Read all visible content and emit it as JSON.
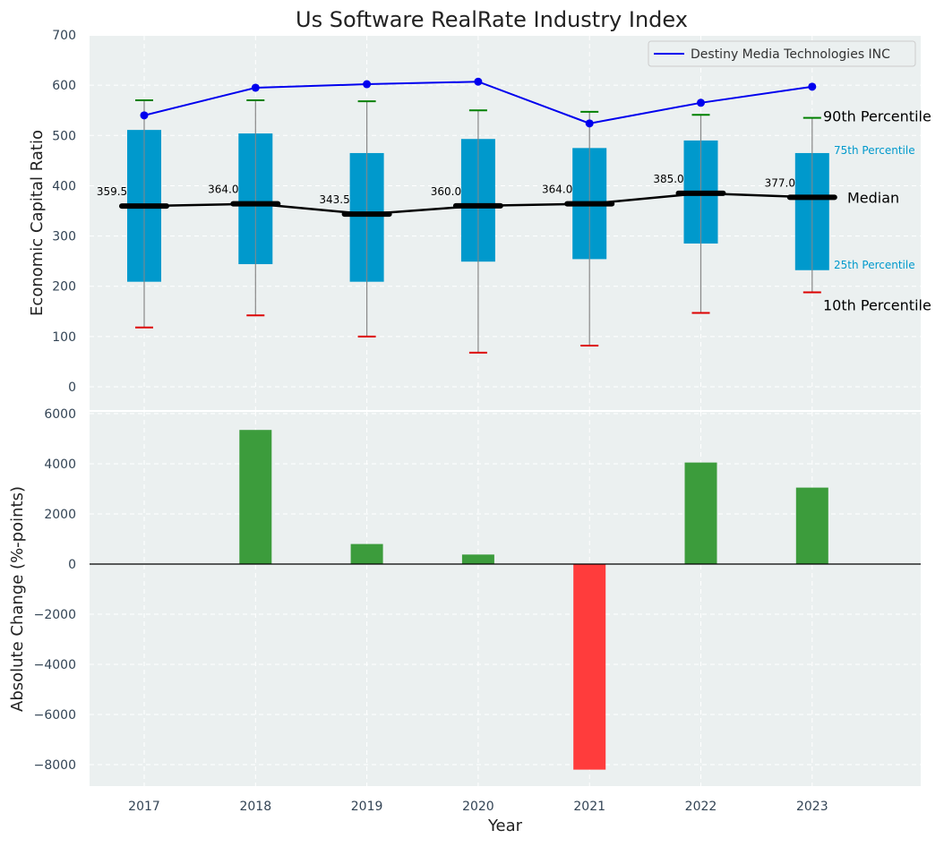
{
  "chart_data": [
    {
      "type": "box",
      "title": "Us Software RealRate Industry Index",
      "ylabel": "Economic Capital Ratio",
      "xlabel": "",
      "ylim": [
        0,
        700
      ],
      "yticks": [
        0,
        100,
        200,
        300,
        400,
        500,
        600,
        700
      ],
      "grid": true,
      "legend_position": "top-right",
      "categories": [
        "2017",
        "2018",
        "2019",
        "2020",
        "2021",
        "2022",
        "2023"
      ],
      "p10": [
        118,
        142,
        100,
        68,
        82,
        147,
        188
      ],
      "p25": [
        209,
        244,
        209,
        249,
        254,
        285,
        232
      ],
      "median": [
        359.5,
        364.0,
        343.5,
        360.0,
        364.0,
        385.0,
        377.0
      ],
      "median_labels": [
        "359.5",
        "364.0",
        "343.5",
        "360.0",
        "364.0",
        "385.0",
        "377.0"
      ],
      "p75": [
        511,
        504,
        465,
        493,
        475,
        490,
        465
      ],
      "p90": [
        570,
        570,
        568,
        550,
        547,
        541,
        535
      ],
      "series": [
        {
          "name": "Destiny Media Technologies INC",
          "values": [
            540,
            595,
            602,
            607,
            524,
            565,
            597
          ],
          "color": "#0000ee"
        }
      ],
      "annotations": {
        "p90": "90th Percentile",
        "p75": "75th Percentile",
        "median": "Median",
        "p25": "25th Percentile",
        "p10": "10th Percentile"
      },
      "colors": {
        "box": "#0099cc",
        "median_line": "#000000",
        "p90_cap": "#008000",
        "p10_cap": "#dd0000",
        "whisker": "#888888",
        "background": "#ebf0f0"
      }
    },
    {
      "type": "bar",
      "xlabel": "Year",
      "ylabel": "Absolute Change (%-points)",
      "ylim": [
        -8800,
        6000
      ],
      "yticks": [
        -8000,
        -6000,
        -4000,
        -2000,
        0,
        2000,
        4000,
        6000
      ],
      "ytick_labels": [
        "−8000",
        "−6000",
        "−4000",
        "−2000",
        "0",
        "2000",
        "4000",
        "6000"
      ],
      "grid": true,
      "categories": [
        "2017",
        "2018",
        "2019",
        "2020",
        "2021",
        "2022",
        "2023"
      ],
      "values": [
        0,
        5350,
        800,
        380,
        -8200,
        4050,
        3050
      ],
      "colors": {
        "positive": "#3c9c3c",
        "negative": "#ff3c3c"
      }
    }
  ]
}
